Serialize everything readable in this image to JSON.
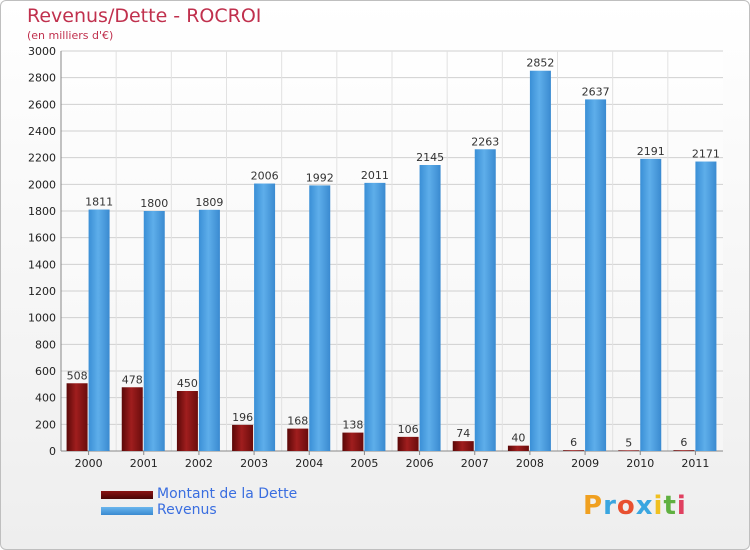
{
  "chart_data": {
    "type": "bar",
    "title": "Revenus/Dette - ROCROI",
    "subtitle": "(en milliers d'€)",
    "xlabel": "",
    "ylabel": "",
    "ylim": [
      0,
      3000
    ],
    "yticks": [
      0,
      200,
      400,
      600,
      800,
      1000,
      1200,
      1400,
      1600,
      1800,
      2000,
      2200,
      2400,
      2600,
      2800,
      3000
    ],
    "grid": true,
    "categories": [
      "2000",
      "2001",
      "2002",
      "2003",
      "2004",
      "2005",
      "2006",
      "2007",
      "2008",
      "2009",
      "2010",
      "2011"
    ],
    "series": [
      {
        "name": "Montant de la Dette",
        "color": "#7a1010",
        "values": [
          508,
          478,
          450,
          196,
          168,
          138,
          106,
          74,
          40,
          6,
          5,
          6
        ]
      },
      {
        "name": "Revenus",
        "color": "#4d9fe0",
        "values": [
          1811,
          1800,
          1809,
          2006,
          1992,
          2011,
          2145,
          2263,
          2852,
          2637,
          2191,
          2171
        ]
      }
    ],
    "legend_position": "bottom-left"
  },
  "logo": {
    "letters": [
      "P",
      "r",
      "o",
      "x",
      "i",
      "t",
      "i"
    ],
    "colors": [
      "#f0a020",
      "#3aa6e0",
      "#e85030",
      "#3aa6e0",
      "#f0c020",
      "#60b040",
      "#e04060"
    ]
  }
}
